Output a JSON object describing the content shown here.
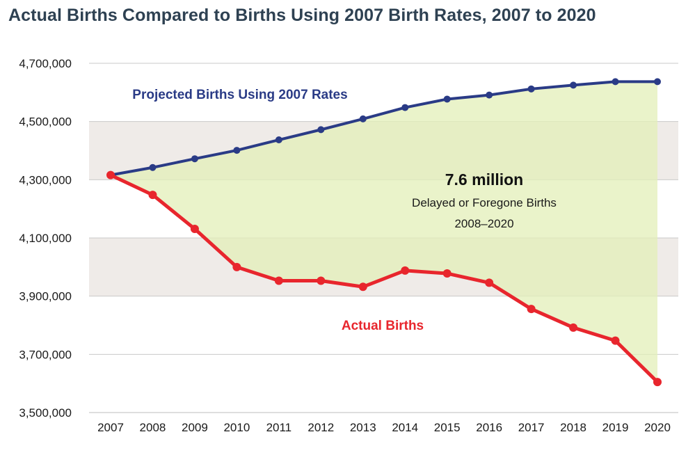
{
  "title": "Actual Births Compared to Births Using 2007 Birth Rates, 2007 to 2020",
  "colors": {
    "projected": "#2a3b86",
    "actual": "#e8262d",
    "gap_fill": "#e3efb8",
    "band": "#efebe8",
    "grid": "#c9c9c9"
  },
  "chart_data": {
    "type": "line",
    "title": "Actual Births Compared to Births Using 2007 Birth Rates, 2007 to 2020",
    "x": [
      2007,
      2008,
      2009,
      2010,
      2011,
      2012,
      2013,
      2014,
      2015,
      2016,
      2017,
      2018,
      2019,
      2020
    ],
    "x_tick_labels": [
      "2007",
      "2008",
      "2009",
      "2010",
      "2011",
      "2012",
      "2013",
      "2014",
      "2015",
      "2016",
      "2017",
      "2018",
      "2019",
      "2020"
    ],
    "ylim": [
      3500000,
      4700000
    ],
    "y_ticks": [
      3500000,
      3700000,
      3900000,
      4100000,
      4300000,
      4500000,
      4700000
    ],
    "y_tick_labels": [
      "3,500,000",
      "3,700,000",
      "3,900,000",
      "4,100,000",
      "4,300,000",
      "4,500,000",
      "4,700,000"
    ],
    "grid": true,
    "shaded_region_between_series": true,
    "series": [
      {
        "name": "Projected Births Using 2007 Rates",
        "values": [
          4316000,
          4342000,
          4372000,
          4401000,
          4437000,
          4472000,
          4509000,
          4548000,
          4577000,
          4591000,
          4612000,
          4625000,
          4637000,
          4637000
        ]
      },
      {
        "name": "Actual Births",
        "values": [
          4316000,
          4248000,
          4131000,
          4000000,
          3953000,
          3953000,
          3932000,
          3988000,
          3978000,
          3946000,
          3856000,
          3792000,
          3747000,
          3605000
        ]
      }
    ],
    "annotations": [
      {
        "text": "Projected Births Using 2007 Rates",
        "series": "projected"
      },
      {
        "text": "Actual Births",
        "series": "actual"
      },
      {
        "text": "7.6 million",
        "role": "headline"
      },
      {
        "text": "Delayed or Foregone Births",
        "role": "sub"
      },
      {
        "text": "2008–2020",
        "role": "sub"
      }
    ]
  }
}
